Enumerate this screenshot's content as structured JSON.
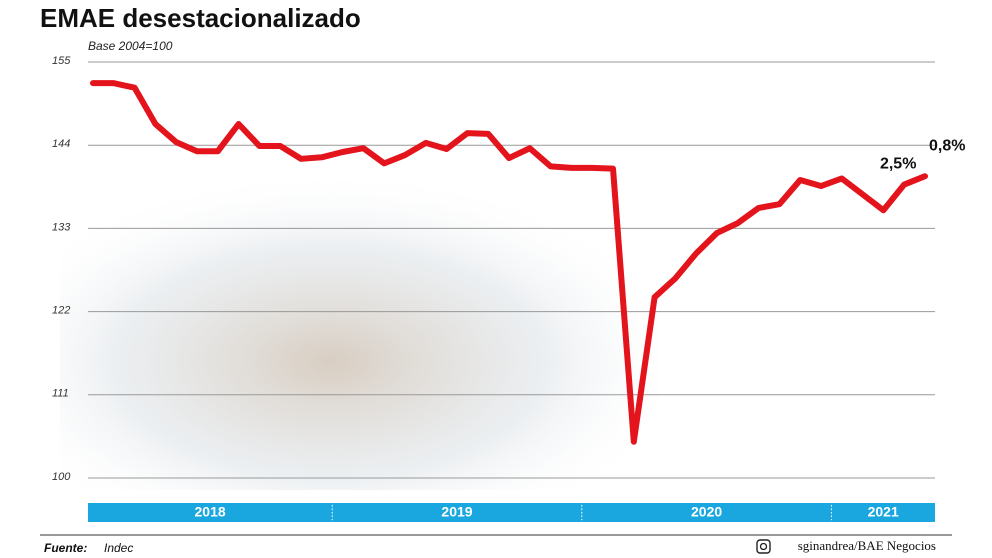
{
  "chart_data": {
    "type": "line",
    "title": "EMAE desestacionalizado",
    "subtitle": "Base 2004=100",
    "categories": [
      null,
      null,
      null,
      null,
      null,
      null,
      null,
      null,
      null,
      null,
      null,
      null,
      null,
      null,
      null,
      null,
      null,
      null,
      null,
      null,
      null,
      null,
      null,
      null,
      null,
      null,
      null,
      null,
      null,
      null,
      null,
      null,
      null,
      null,
      null,
      null,
      null,
      null,
      null,
      null,
      null
    ],
    "year_groups": [
      {
        "label": "2018",
        "months": 12
      },
      {
        "label": "2019",
        "months": 12
      },
      {
        "label": "2020",
        "months": 12
      },
      {
        "label": "2021",
        "months": 5
      }
    ],
    "series": [
      {
        "color": "#e3141c",
        "values": [
          152.2,
          152.2,
          151.6,
          146.8,
          144.4,
          143.2,
          143.2,
          146.8,
          143.9,
          143.9,
          142.2,
          142.4,
          143.1,
          143.6,
          141.6,
          142.7,
          144.3,
          143.5,
          145.6,
          145.5,
          142.3,
          143.6,
          141.2,
          141.0,
          141.0,
          140.9,
          104.8,
          123.9,
          126.4,
          129.7,
          132.4,
          133.7,
          135.7,
          136.2,
          139.4,
          138.6,
          139.6,
          137.5,
          135.4,
          138.8,
          139.9
        ]
      }
    ],
    "annotations": [
      {
        "text": "2,5%",
        "index": 39
      },
      {
        "text": "0,8%",
        "index": 40
      }
    ],
    "ylim": [
      100,
      155
    ],
    "yticks": [
      100,
      111,
      122,
      133,
      144,
      155
    ],
    "grid": true,
    "band_color": "#1aa7e0",
    "source_label": "Fuente:",
    "source": "Indec",
    "credit": "sginandrea/BAE Negocios"
  }
}
